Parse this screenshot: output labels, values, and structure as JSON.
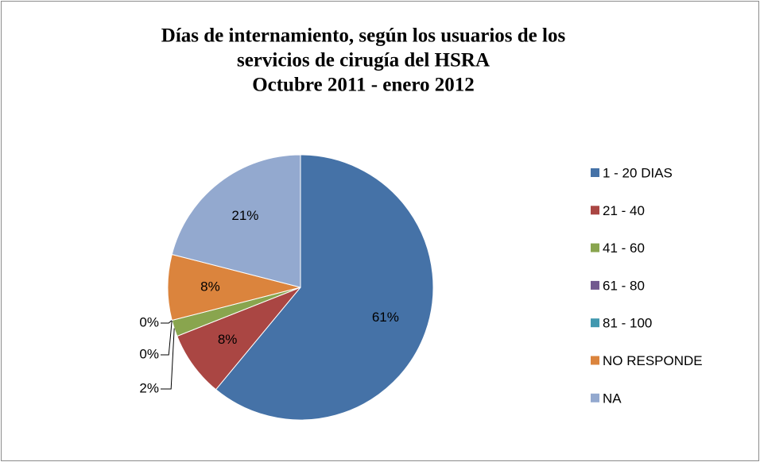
{
  "chart_data": {
    "type": "pie",
    "title": [
      "Días de internamiento, según los usuarios de los",
      "servicios de cirugía del HSRA",
      "Octubre 2011 - enero 2012"
    ],
    "categories": [
      "1 - 20  DIAS",
      "21 - 40",
      "41 - 60",
      "61 - 80",
      "81 - 100",
      "NO RESPONDE",
      "NA"
    ],
    "values": [
      61,
      8,
      2,
      0,
      0,
      8,
      21
    ],
    "value_labels": [
      "61%",
      "8%",
      "2%",
      "0%",
      "0%",
      "8%",
      "21%"
    ],
    "colors": [
      "#4572a7",
      "#aa4643",
      "#89a54e",
      "#71588f",
      "#4198af",
      "#db843d",
      "#93a9cf"
    ],
    "legend": "right"
  }
}
